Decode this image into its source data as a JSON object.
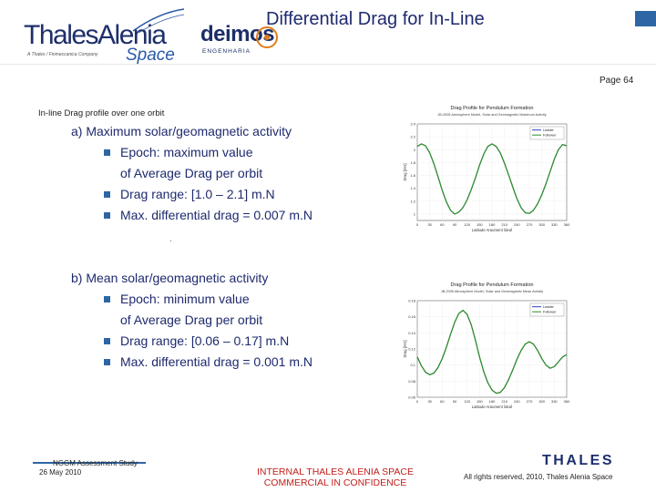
{
  "header": {
    "company_logo": {
      "name": "ThalesAlenia",
      "tagline": "A Thales / Finmeccanica Company",
      "suffix": "Space"
    },
    "partner_logo": {
      "name": "deimos",
      "subtitle": "ENGENHARIA"
    },
    "title": "Differential Drag for In-Line",
    "page_number": "Page 64"
  },
  "section_heading": "In-line Drag profile over one orbit",
  "block_a": {
    "heading": "a)  Maximum solar/geomagnetic activity",
    "bullets": [
      "Epoch: maximum value",
      "Drag range:  [1.0 – 2.1] m.N",
      "Max. differential drag = 0.007 m.N"
    ],
    "continuation": "of Average Drag per orbit"
  },
  "block_b": {
    "heading": "b)  Mean solar/geomagnetic activity",
    "bullets": [
      "Epoch: minimum value",
      "Drag range:  [0.06 – 0.17] m.N",
      "Max. differential drag = 0.001 m.N"
    ],
    "continuation": "of Average Drag per orbit"
  },
  "chart_data": [
    {
      "type": "line",
      "title": "Drag Profile for Pendulum Formation",
      "subtitle": "JB-2006 Atmosphere Model, Solar and Geomagnetic Maximum Activity",
      "xlabel": "Latitude Argument [deg]",
      "ylabel": "Drag [mN]",
      "xlim": [
        0,
        360
      ],
      "ylim": [
        0.9,
        2.4
      ],
      "x_ticks": [
        "0",
        "30",
        "60",
        "90",
        "120",
        "150",
        "180",
        "210",
        "240",
        "270",
        "300",
        "330",
        "360"
      ],
      "y_ticks": [
        "1",
        "1.2",
        "1.4",
        "1.6",
        "1.8",
        "2",
        "2.2",
        "2.4"
      ],
      "legend": [
        "Leader",
        "Follower"
      ],
      "legend_position": "top-right",
      "grid": true,
      "colors": {
        "Leader": "#2b3fbf",
        "Follower": "#2e8b2e"
      },
      "x": [
        0,
        10,
        20,
        30,
        40,
        50,
        60,
        70,
        80,
        90,
        100,
        110,
        120,
        130,
        140,
        150,
        160,
        170,
        180,
        190,
        200,
        210,
        220,
        230,
        240,
        250,
        260,
        270,
        280,
        290,
        300,
        310,
        320,
        330,
        340,
        350,
        360
      ],
      "series": [
        {
          "name": "Leader",
          "values": [
            2.05,
            2.09,
            2.06,
            1.95,
            1.78,
            1.58,
            1.37,
            1.19,
            1.06,
            1.0,
            1.03,
            1.1,
            1.22,
            1.38,
            1.56,
            1.76,
            1.93,
            2.05,
            2.09,
            2.05,
            1.95,
            1.79,
            1.61,
            1.42,
            1.24,
            1.1,
            1.02,
            1.01,
            1.06,
            1.16,
            1.3,
            1.47,
            1.66,
            1.85,
            2.0,
            2.08,
            2.06
          ]
        },
        {
          "name": "Follower",
          "values": [
            2.05,
            2.09,
            2.06,
            1.95,
            1.78,
            1.58,
            1.37,
            1.19,
            1.06,
            1.0,
            1.03,
            1.1,
            1.22,
            1.38,
            1.56,
            1.76,
            1.93,
            2.05,
            2.09,
            2.05,
            1.95,
            1.79,
            1.61,
            1.42,
            1.24,
            1.1,
            1.02,
            1.01,
            1.06,
            1.16,
            1.3,
            1.47,
            1.66,
            1.85,
            2.0,
            2.08,
            2.06
          ]
        }
      ]
    },
    {
      "type": "line",
      "title": "Drag Profile for Pendulum Formation",
      "subtitle": "JB-2006 Atmosphere Model, Solar and Geomagnetic Mean Activity",
      "xlabel": "Latitude Argument [deg]",
      "ylabel": "Drag [mN]",
      "xlim": [
        0,
        360
      ],
      "ylim": [
        0.06,
        0.18
      ],
      "x_ticks": [
        "0",
        "30",
        "60",
        "90",
        "120",
        "150",
        "180",
        "210",
        "240",
        "270",
        "300",
        "330",
        "360"
      ],
      "y_ticks": [
        "0.06",
        "0.08",
        "0.1",
        "0.12",
        "0.14",
        "0.16",
        "0.18"
      ],
      "legend": [
        "Leader",
        "Follower"
      ],
      "legend_position": "top-right",
      "grid": true,
      "colors": {
        "Leader": "#2b3fbf",
        "Follower": "#2e8b2e"
      },
      "x": [
        0,
        10,
        20,
        30,
        40,
        50,
        60,
        70,
        80,
        90,
        100,
        110,
        120,
        130,
        140,
        150,
        160,
        170,
        180,
        190,
        200,
        210,
        220,
        230,
        240,
        250,
        260,
        270,
        280,
        290,
        300,
        310,
        320,
        330,
        340,
        350,
        360
      ],
      "series": [
        {
          "name": "Leader",
          "values": [
            0.11,
            0.099,
            0.091,
            0.088,
            0.09,
            0.097,
            0.108,
            0.122,
            0.138,
            0.153,
            0.164,
            0.168,
            0.163,
            0.15,
            0.131,
            0.11,
            0.092,
            0.078,
            0.069,
            0.065,
            0.066,
            0.072,
            0.082,
            0.094,
            0.107,
            0.118,
            0.126,
            0.129,
            0.126,
            0.118,
            0.108,
            0.1,
            0.096,
            0.098,
            0.104,
            0.11,
            0.113
          ]
        },
        {
          "name": "Follower",
          "values": [
            0.11,
            0.099,
            0.091,
            0.088,
            0.09,
            0.097,
            0.108,
            0.122,
            0.138,
            0.153,
            0.164,
            0.168,
            0.163,
            0.15,
            0.131,
            0.11,
            0.092,
            0.078,
            0.069,
            0.065,
            0.066,
            0.072,
            0.082,
            0.094,
            0.107,
            0.118,
            0.126,
            0.129,
            0.126,
            0.118,
            0.108,
            0.1,
            0.096,
            0.098,
            0.104,
            0.11,
            0.113
          ]
        }
      ]
    }
  ],
  "footer": {
    "study": "NGGM Assessment Study",
    "date": "26 May 2010",
    "confidentiality": "INTERNAL THALES ALENIA SPACE COMMERCIAL IN CONFIDENCE",
    "brand": "THALES",
    "rights": "All rights reserved, 2010, Thales Alenia Space"
  }
}
